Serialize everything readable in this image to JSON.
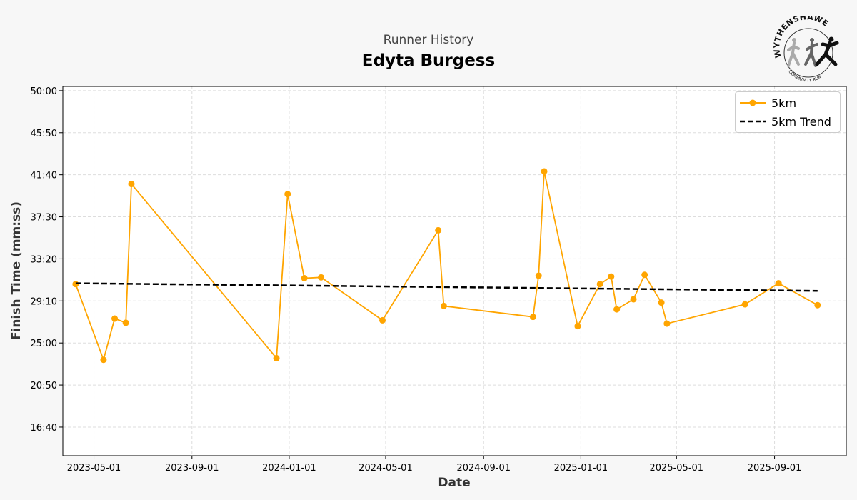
{
  "header": {
    "subtitle": "Runner History",
    "title": "Edyta Burgess"
  },
  "logo": {
    "ring_text": "WYTHENSHAWE",
    "sub_text": "COMMUNITY RUN"
  },
  "chart_data": {
    "type": "line",
    "xlabel": "Date",
    "ylabel": "Finish Time (mm:ss)",
    "x_ticks": [
      "2023-05-01",
      "2023-09-01",
      "2024-01-01",
      "2024-05-01",
      "2024-09-01",
      "2025-01-01",
      "2025-05-01",
      "2025-09-01"
    ],
    "y_ticks": [
      "16:40",
      "20:50",
      "25:00",
      "29:10",
      "33:20",
      "37:30",
      "41:40",
      "45:50",
      "50:00"
    ],
    "xlim": [
      "2023-03-23",
      "2025-11-30"
    ],
    "ylim": [
      "13:50",
      "50:25"
    ],
    "grid": true,
    "legend_position": "top-right",
    "series": [
      {
        "name": "5km",
        "color": "#FFA500",
        "points": [
          {
            "x": "2023-04-08",
            "y": "30:50"
          },
          {
            "x": "2023-05-13",
            "y": "23:20"
          },
          {
            "x": "2023-05-27",
            "y": "27:25"
          },
          {
            "x": "2023-06-10",
            "y": "27:00"
          },
          {
            "x": "2023-06-17",
            "y": "40:45"
          },
          {
            "x": "2023-12-16",
            "y": "23:30"
          },
          {
            "x": "2023-12-30",
            "y": "39:45"
          },
          {
            "x": "2024-01-20",
            "y": "31:25"
          },
          {
            "x": "2024-02-10",
            "y": "31:30"
          },
          {
            "x": "2024-04-27",
            "y": "27:15"
          },
          {
            "x": "2024-07-06",
            "y": "36:10"
          },
          {
            "x": "2024-07-13",
            "y": "28:40"
          },
          {
            "x": "2024-11-02",
            "y": "27:35"
          },
          {
            "x": "2024-11-09",
            "y": "31:40"
          },
          {
            "x": "2024-11-16",
            "y": "42:00"
          },
          {
            "x": "2024-12-28",
            "y": "26:40"
          },
          {
            "x": "2025-01-25",
            "y": "30:50"
          },
          {
            "x": "2025-02-08",
            "y": "31:35"
          },
          {
            "x": "2025-02-15",
            "y": "28:20"
          },
          {
            "x": "2025-03-08",
            "y": "29:20"
          },
          {
            "x": "2025-03-22",
            "y": "31:45"
          },
          {
            "x": "2025-04-12",
            "y": "29:00"
          },
          {
            "x": "2025-04-19",
            "y": "26:55"
          },
          {
            "x": "2025-07-26",
            "y": "28:50"
          },
          {
            "x": "2025-09-06",
            "y": "30:55"
          },
          {
            "x": "2025-10-25",
            "y": "28:45"
          }
        ]
      },
      {
        "name": "5km Trend",
        "color": "#000000",
        "style": "dashed",
        "points": [
          {
            "x": "2023-04-08",
            "y": "30:55"
          },
          {
            "x": "2025-10-25",
            "y": "30:10"
          }
        ]
      }
    ]
  }
}
